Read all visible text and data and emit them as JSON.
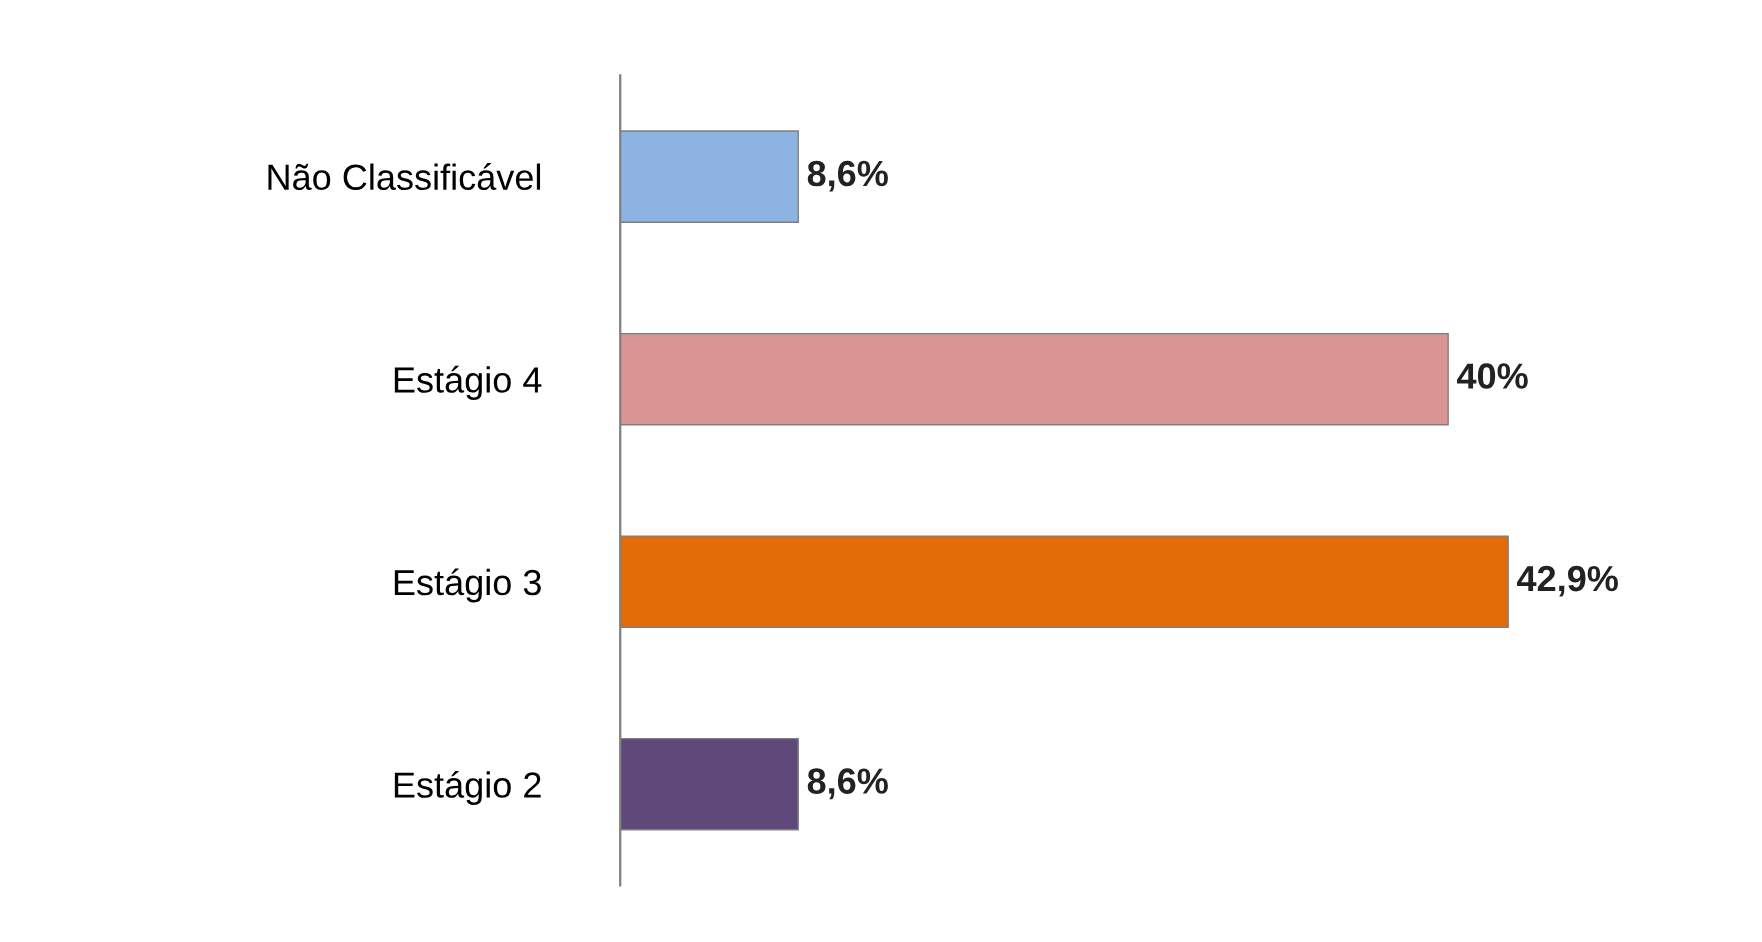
{
  "chart_data": {
    "type": "bar",
    "orientation": "horizontal",
    "tick_labels": "y",
    "categories": [
      "Não Classificável",
      "Estágio 4",
      "Estágio 3",
      "Estágio 2"
    ],
    "values": [
      8.6,
      40,
      42.9,
      8.6
    ],
    "colors": [
      "#8db3e2",
      "#d99594",
      "#e36c09",
      "#5f497a"
    ],
    "value_labels": [
      "8,6%",
      "40%",
      "42,9%",
      "8,6%"
    ],
    "grid": false,
    "legend": false
  }
}
